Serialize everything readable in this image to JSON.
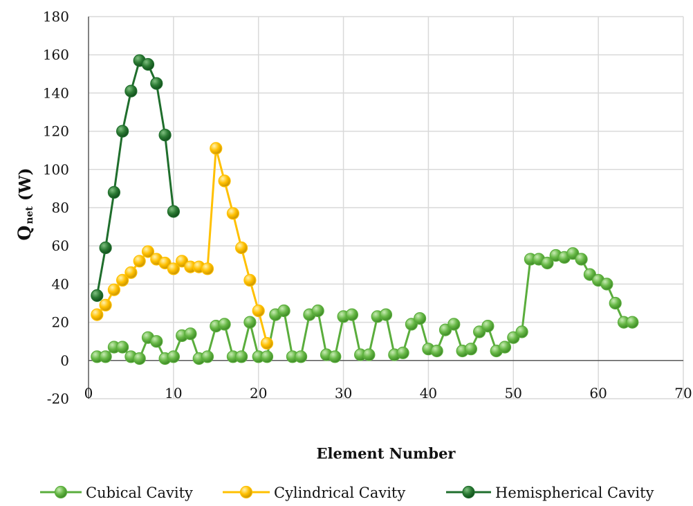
{
  "chart_data": {
    "type": "line",
    "title": "",
    "xlabel": "Element Number",
    "ylabel_main": "Q",
    "ylabel_sub": "net",
    "ylabel_unit": " (W)",
    "xlim": [
      0,
      70
    ],
    "ylim": [
      -20,
      180
    ],
    "xticks": [
      "0",
      "10",
      "20",
      "30",
      "40",
      "50",
      "60",
      "70"
    ],
    "yticks": [
      "-20",
      "0",
      "20",
      "40",
      "60",
      "80",
      "100",
      "120",
      "140",
      "160",
      "180"
    ],
    "grid": true,
    "legend_position": "bottom",
    "series": [
      {
        "name": "Cubical Cavity",
        "color": "#5aad3c",
        "marker_fill": "#67b846",
        "x": [
          1,
          2,
          3,
          4,
          5,
          6,
          7,
          8,
          9,
          10,
          11,
          12,
          13,
          14,
          15,
          16,
          17,
          18,
          19,
          20,
          21,
          22,
          23,
          24,
          25,
          26,
          27,
          28,
          29,
          30,
          31,
          32,
          33,
          34,
          35,
          36,
          37,
          38,
          39,
          40,
          41,
          42,
          43,
          44,
          45,
          46,
          47,
          48,
          49,
          50,
          51,
          52,
          53,
          54,
          55,
          56,
          57,
          58,
          59,
          60,
          61,
          62,
          63,
          64
        ],
        "y": [
          2,
          2,
          7,
          7,
          2,
          1,
          12,
          10,
          1,
          2,
          13,
          14,
          1,
          2,
          18,
          19,
          2,
          2,
          20,
          2,
          2,
          24,
          26,
          2,
          2,
          24,
          26,
          3,
          2,
          23,
          24,
          3,
          3,
          23,
          24,
          3,
          4,
          19,
          22,
          6,
          5,
          16,
          19,
          5,
          6,
          15,
          18,
          5,
          7,
          12,
          15,
          53,
          53,
          51,
          55,
          54,
          56,
          53,
          45,
          42,
          40,
          30,
          20,
          20
        ],
        "y_note_unused": ""
      },
      {
        "name": "Cylindrical Cavity",
        "color": "#ffc000",
        "marker_fill": "#ffc000",
        "x": [
          1,
          2,
          3,
          4,
          5,
          6,
          7,
          8,
          9,
          10,
          11,
          12,
          13,
          14,
          15,
          16,
          17,
          18,
          19,
          20,
          21
        ],
        "y": [
          24,
          29,
          37,
          42,
          46,
          52,
          57,
          53,
          51,
          48,
          52,
          49,
          49,
          48,
          111,
          94,
          77,
          59,
          42,
          26,
          9
        ]
      },
      {
        "name": "Hemispherical Cavity",
        "color": "#1f6e2c",
        "marker_fill": "#2b7a33",
        "x": [
          1,
          2,
          3,
          4,
          5,
          6,
          7,
          8,
          9,
          10
        ],
        "y": [
          34,
          59,
          88,
          120,
          141,
          157,
          155,
          145,
          118,
          78
        ]
      }
    ]
  }
}
